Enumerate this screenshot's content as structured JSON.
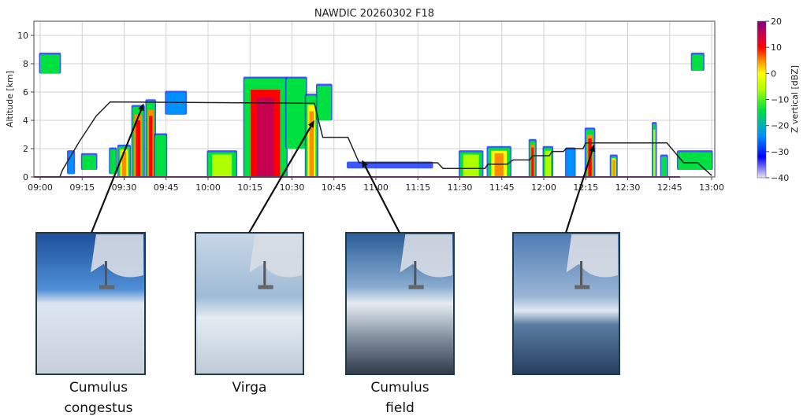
{
  "chart_data": {
    "type": "heatmap",
    "title": "NAWDIC 20260302 F18",
    "xlabel": "",
    "ylabel": "Altitude [km]",
    "xlim": [
      "09:00",
      "13:00"
    ],
    "ylim": [
      0,
      11
    ],
    "x_ticks": [
      "09:00",
      "09:15",
      "09:30",
      "09:45",
      "10:00",
      "10:15",
      "10:30",
      "10:45",
      "11:00",
      "11:15",
      "11:30",
      "11:45",
      "12:00",
      "12:15",
      "12:30",
      "12:45",
      "13:00"
    ],
    "y_ticks": [
      0,
      2,
      4,
      6,
      8,
      10
    ],
    "grid": true,
    "colorbar": {
      "label": "Z vertical [dBZ]",
      "range": [
        -40,
        20
      ],
      "ticks": [
        20,
        10,
        0,
        -10,
        -20,
        -30,
        -40
      ],
      "colormap": [
        {
          "v": -40,
          "c": "#e6e6ee"
        },
        {
          "v": -32,
          "c": "#0000ff"
        },
        {
          "v": -24,
          "c": "#0090ff"
        },
        {
          "v": -14,
          "c": "#00e040"
        },
        {
          "v": -6,
          "c": "#b0ff00"
        },
        {
          "v": 0,
          "c": "#ffff00"
        },
        {
          "v": 5,
          "c": "#ff8c00"
        },
        {
          "v": 10,
          "c": "#ff0000"
        },
        {
          "v": 15,
          "c": "#c80050"
        },
        {
          "v": 20,
          "c": "#800080"
        }
      ]
    },
    "flight_altitude": {
      "color": "#222222",
      "points": [
        [
          "09:00",
          0.0
        ],
        [
          "09:07",
          0.0
        ],
        [
          "09:08",
          0.5
        ],
        [
          "09:14",
          2.5
        ],
        [
          "09:20",
          4.3
        ],
        [
          "09:25",
          5.3
        ],
        [
          "10:38",
          5.2
        ],
        [
          "10:41",
          2.8
        ],
        [
          "10:50",
          2.8
        ],
        [
          "10:54",
          1.0
        ],
        [
          "11:22",
          1.0
        ],
        [
          "11:24",
          0.6
        ],
        [
          "11:39",
          0.6
        ],
        [
          "11:40",
          0.9
        ],
        [
          "11:47",
          0.9
        ],
        [
          "11:49",
          1.2
        ],
        [
          "11:55",
          1.2
        ],
        [
          "11:56",
          1.5
        ],
        [
          "12:02",
          1.5
        ],
        [
          "12:03",
          1.8
        ],
        [
          "12:07",
          1.8
        ],
        [
          "12:08",
          2.0
        ],
        [
          "12:14",
          2.0
        ],
        [
          "12:15",
          2.4
        ],
        [
          "12:44",
          2.4
        ],
        [
          "12:50",
          1.0
        ],
        [
          "12:55",
          1.0
        ],
        [
          "13:00",
          0.1
        ]
      ]
    },
    "echoes": [
      {
        "t0": "09:00",
        "t1": "09:07",
        "z0": 7.3,
        "z1": 8.7,
        "dbz": -12
      },
      {
        "t0": "09:10",
        "t1": "09:12",
        "z0": 0.2,
        "z1": 1.8,
        "dbz": -22
      },
      {
        "t0": "09:15",
        "t1": "09:20",
        "z0": 0.5,
        "z1": 1.6,
        "dbz": -14
      },
      {
        "t0": "09:25",
        "t1": "09:27",
        "z0": 0.2,
        "z1": 2.0,
        "dbz": -8
      },
      {
        "t0": "09:28",
        "t1": "09:32",
        "z0": 0.0,
        "z1": 2.2,
        "dbz": 5
      },
      {
        "t0": "09:33",
        "t1": "09:37",
        "z0": 0.0,
        "z1": 5.0,
        "dbz": 12
      },
      {
        "t0": "09:38",
        "t1": "09:41",
        "z0": 0.0,
        "z1": 5.4,
        "dbz": 10
      },
      {
        "t0": "09:41",
        "t1": "09:45",
        "z0": 0.0,
        "z1": 3.0,
        "dbz": -14
      },
      {
        "t0": "09:45",
        "t1": "09:52",
        "z0": 4.4,
        "z1": 6.0,
        "dbz": -22
      },
      {
        "t0": "10:00",
        "t1": "10:10",
        "z0": 0.0,
        "z1": 1.8,
        "dbz": 2
      },
      {
        "t0": "10:13",
        "t1": "10:28",
        "z0": 0.0,
        "z1": 7.0,
        "dbz": 16
      },
      {
        "t0": "10:28",
        "t1": "10:35",
        "z0": 2.0,
        "z1": 7.0,
        "dbz": -10
      },
      {
        "t0": "10:35",
        "t1": "10:39",
        "z0": 0.0,
        "z1": 5.8,
        "dbz": 6
      },
      {
        "t0": "10:39",
        "t1": "10:44",
        "z0": 4.0,
        "z1": 6.5,
        "dbz": -4
      },
      {
        "t0": "10:50",
        "t1": "11:20",
        "z0": 0.6,
        "z1": 1.0,
        "dbz": -30
      },
      {
        "t0": "11:30",
        "t1": "11:38",
        "z0": 0.0,
        "z1": 1.8,
        "dbz": 2
      },
      {
        "t0": "11:40",
        "t1": "11:48",
        "z0": 0.0,
        "z1": 2.1,
        "dbz": 6
      },
      {
        "t0": "11:55",
        "t1": "11:57",
        "z0": 0.0,
        "z1": 2.6,
        "dbz": 12
      },
      {
        "t0": "12:00",
        "t1": "12:03",
        "z0": 0.0,
        "z1": 2.1,
        "dbz": 2
      },
      {
        "t0": "12:08",
        "t1": "12:11",
        "z0": 0.0,
        "z1": 2.0,
        "dbz": -20
      },
      {
        "t0": "12:15",
        "t1": "12:18",
        "z0": 0.0,
        "z1": 3.4,
        "dbz": 12
      },
      {
        "t0": "12:24",
        "t1": "12:26",
        "z0": 0.0,
        "z1": 1.5,
        "dbz": 6
      },
      {
        "t0": "12:39",
        "t1": "12:40",
        "z0": 0.0,
        "z1": 3.8,
        "dbz": 2
      },
      {
        "t0": "12:42",
        "t1": "12:44",
        "z0": 0.0,
        "z1": 1.5,
        "dbz": -14
      },
      {
        "t0": "12:48",
        "t1": "13:00",
        "z0": 0.5,
        "z1": 1.8,
        "dbz": -12
      },
      {
        "t0": "12:53",
        "t1": "12:57",
        "z0": 7.5,
        "z1": 8.7,
        "dbz": -14
      }
    ]
  },
  "photos": [
    {
      "caption_lines": [
        "Cumulus",
        "congestus"
      ],
      "points_to": [
        "09:37",
        5.2
      ]
    },
    {
      "caption_lines": [
        "Virga"
      ],
      "points_to": [
        "10:38",
        4.0
      ]
    },
    {
      "caption_lines": [
        "Cumulus",
        "field"
      ],
      "points_to": [
        "10:55",
        1.2
      ]
    },
    {
      "caption_lines": [],
      "points_to": [
        "12:18",
        2.3
      ]
    }
  ]
}
